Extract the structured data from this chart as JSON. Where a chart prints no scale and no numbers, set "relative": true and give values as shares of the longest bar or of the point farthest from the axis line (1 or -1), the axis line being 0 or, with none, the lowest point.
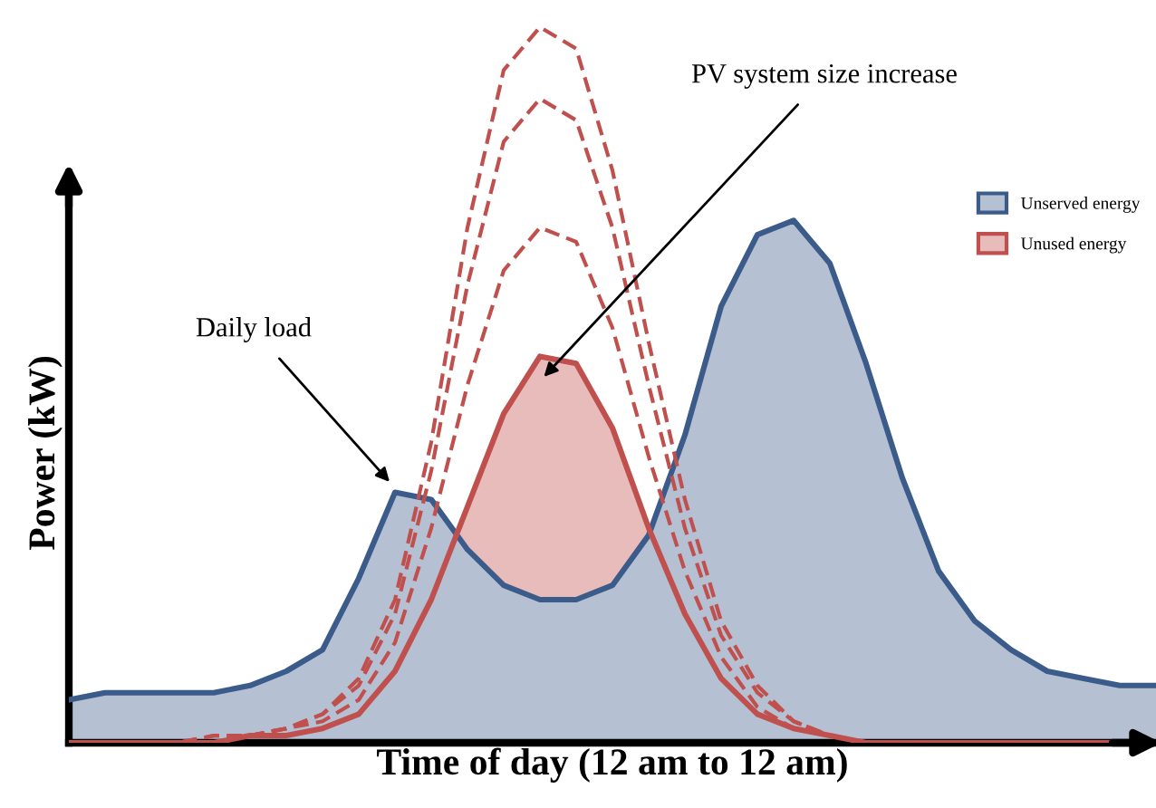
{
  "chart_data": {
    "type": "area",
    "relative": true,
    "xlabel": "Time of day (12 am to 12 am)",
    "ylabel": "Power (kW)",
    "legend": "top right",
    "marker": "none",
    "annotations": [
      "Daily load",
      "PV system size increase"
    ],
    "categories": [
      null,
      null,
      null,
      null,
      null,
      null,
      null,
      null,
      null,
      null,
      null,
      null,
      null,
      null,
      null,
      null,
      null,
      null,
      null,
      null,
      null,
      null,
      null,
      null,
      null,
      null,
      null,
      null,
      null,
      null,
      null
    ],
    "series": [
      {
        "name": "Unserved energy",
        "color": "#3b5b8a",
        "values": [
          0.06,
          0.07,
          0.07,
          0.07,
          0.07,
          0.08,
          0.1,
          0.13,
          0.23,
          0.35,
          0.34,
          0.27,
          0.22,
          0.2,
          0.2,
          0.22,
          0.29,
          0.43,
          0.61,
          0.71,
          0.73,
          0.67,
          0.53,
          0.37,
          0.24,
          0.17,
          0.13,
          0.1,
          0.09,
          0.08,
          0.08
        ]
      },
      {
        "name": "Unused energy",
        "color": "#c0504d",
        "values": [
          0,
          0,
          0,
          0,
          0,
          0.01,
          0.01,
          0.02,
          0.04,
          0.1,
          0.2,
          0.33,
          0.46,
          0.54,
          0.53,
          0.44,
          0.3,
          0.18,
          0.09,
          0.04,
          0.02,
          0.01,
          0,
          0,
          0,
          0,
          0,
          0,
          0,
          0,
          0
        ]
      },
      {
        "type": "line",
        "line_style": "dashed",
        "color": "#c0504d",
        "values": [
          0,
          0,
          0,
          0,
          0,
          0.01,
          0.02,
          0.03,
          0.06,
          0.14,
          0.3,
          0.5,
          0.66,
          0.72,
          0.7,
          0.58,
          0.4,
          0.24,
          0.12,
          0.05,
          0.02,
          0.01,
          0,
          0,
          0,
          0,
          0,
          0,
          0,
          0,
          0
        ]
      },
      {
        "type": "line",
        "line_style": "dashed",
        "color": "#c0504d",
        "values": [
          0,
          0,
          0,
          0,
          0.01,
          0.01,
          0.02,
          0.04,
          0.08,
          0.18,
          0.38,
          0.64,
          0.84,
          0.9,
          0.87,
          0.72,
          0.5,
          0.3,
          0.15,
          0.07,
          0.03,
          0.01,
          0,
          0,
          0,
          0,
          0,
          0,
          0,
          0,
          0
        ]
      },
      {
        "type": "line",
        "line_style": "dashed",
        "color": "#c0504d",
        "values": [
          0,
          0,
          0,
          0,
          0.01,
          0.01,
          0.02,
          0.04,
          0.09,
          0.2,
          0.42,
          0.72,
          0.94,
          1,
          0.97,
          0.8,
          0.56,
          0.34,
          0.17,
          0.08,
          0.03,
          0.01,
          0,
          0,
          0,
          0,
          0,
          0,
          0,
          0,
          0
        ]
      }
    ]
  }
}
